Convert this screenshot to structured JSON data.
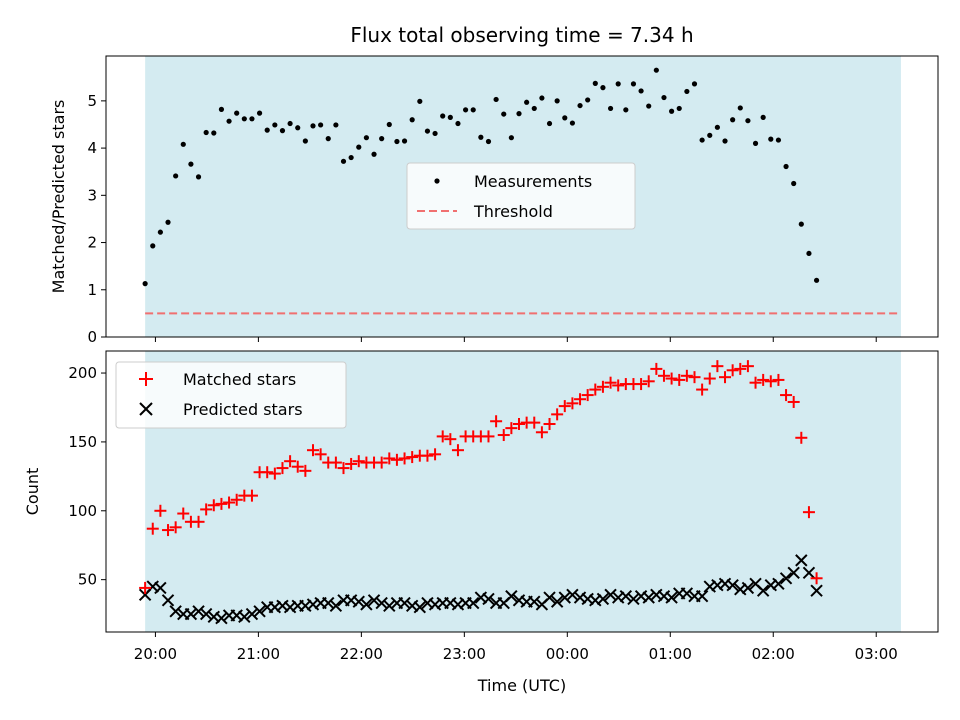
{
  "chart_data": [
    {
      "type": "scatter",
      "title": "Flux total observing time = 7.34 h",
      "ylabel": "Matched/Predicted stars",
      "xlabel": "",
      "ylim": [
        0,
        5.95
      ],
      "yticks": [
        0,
        1,
        2,
        3,
        4,
        5
      ],
      "xlim_hours": [
        -0.48,
        7.6
      ],
      "xticks": [
        "20:00",
        "21:00",
        "22:00",
        "23:00",
        "00:00",
        "01:00",
        "02:00",
        "03:00"
      ],
      "observing_span_hours": [
        -0.1,
        7.24
      ],
      "shading_color": "#d4ebf1",
      "legend_position": "center",
      "series": [
        {
          "name": "Measurements",
          "marker": "dot",
          "color": "#000000",
          "x_start_hours": -0.1,
          "x_step_hours": 0.0741,
          "values": [
            1.13,
            1.93,
            2.22,
            2.43,
            3.41,
            4.08,
            3.66,
            3.39,
            4.33,
            4.32,
            4.82,
            4.57,
            4.74,
            4.62,
            4.62,
            4.74,
            4.38,
            4.49,
            4.37,
            4.52,
            4.43,
            4.15,
            4.47,
            4.49,
            4.2,
            4.49,
            3.72,
            3.8,
            4.02,
            4.22,
            3.87,
            4.2,
            4.5,
            4.14,
            4.15,
            4.6,
            4.99,
            4.36,
            4.31,
            4.68,
            4.65,
            4.52,
            4.81,
            4.81,
            4.23,
            4.14,
            5.03,
            4.72,
            4.22,
            4.73,
            4.97,
            4.84,
            5.06,
            4.52,
            5.0,
            4.64,
            4.53,
            4.9,
            5.02,
            5.37,
            5.28,
            4.84,
            5.36,
            4.81,
            5.36,
            5.21,
            4.89,
            5.65,
            5.07,
            4.78,
            4.84,
            5.2,
            5.36,
            4.17,
            4.27,
            4.44,
            4.15,
            4.6,
            4.85,
            4.58,
            4.1,
            4.65,
            4.19,
            4.17,
            3.61,
            3.25,
            2.39,
            1.77,
            1.2
          ]
        },
        {
          "name": "Threshold",
          "marker": "dashed-line",
          "color": "#f07070",
          "value": 0.5,
          "x_range_hours": [
            -0.1,
            7.24
          ]
        }
      ]
    },
    {
      "type": "scatter",
      "title": "",
      "ylabel": "Count",
      "xlabel": "Time (UTC)",
      "ylim": [
        12,
        216
      ],
      "yticks": [
        50,
        100,
        150,
        200
      ],
      "xlim_hours": [
        -0.48,
        7.6
      ],
      "xticks": [
        "20:00",
        "21:00",
        "22:00",
        "23:00",
        "00:00",
        "01:00",
        "02:00",
        "03:00"
      ],
      "observing_span_hours": [
        -0.1,
        7.24
      ],
      "shading_color": "#d4ebf1",
      "legend_position": "top-left",
      "series": [
        {
          "name": "Matched stars",
          "marker": "plus",
          "color": "#ff0000",
          "x_start_hours": -0.1,
          "x_step_hours": 0.0741,
          "values": [
            44,
            87,
            100,
            86,
            88,
            98,
            92,
            92,
            101,
            104,
            105,
            106,
            108,
            111,
            111,
            128,
            128,
            127,
            131,
            136,
            132,
            129,
            144,
            141,
            135,
            135,
            131,
            134,
            136,
            135,
            135,
            135,
            138,
            137,
            138,
            139,
            140,
            140,
            141,
            154,
            152,
            144,
            154,
            154,
            154,
            154,
            165,
            155,
            160,
            163,
            164,
            164,
            157,
            163,
            170,
            176,
            178,
            181,
            184,
            188,
            190,
            193,
            191,
            192,
            192,
            192,
            194,
            203,
            198,
            196,
            195,
            198,
            197,
            188,
            196,
            205,
            197,
            202,
            203,
            205,
            193,
            195,
            194,
            195,
            184,
            179,
            153,
            99,
            51
          ]
        },
        {
          "name": "Predicted stars",
          "marker": "x",
          "color": "#000000",
          "x_start_hours": -0.1,
          "x_step_hours": 0.0741,
          "values": [
            39,
            45,
            44,
            35,
            27,
            25,
            25,
            27,
            25,
            23,
            22,
            24,
            24,
            23,
            25,
            27,
            30,
            30,
            31,
            30,
            31,
            31,
            32,
            33,
            33,
            31,
            35,
            35,
            34,
            32,
            35,
            33,
            31,
            33,
            33,
            31,
            30,
            33,
            32,
            33,
            33,
            32,
            33,
            33,
            37,
            36,
            33,
            33,
            38,
            35,
            34,
            34,
            32,
            37,
            34,
            37,
            39,
            37,
            36,
            35,
            36,
            39,
            37,
            38,
            36,
            38,
            37,
            39,
            38,
            37,
            40,
            40,
            38,
            38,
            45,
            46,
            47,
            46,
            43,
            44,
            47,
            42,
            46,
            47,
            51,
            55,
            64,
            55,
            42
          ]
        }
      ]
    }
  ]
}
